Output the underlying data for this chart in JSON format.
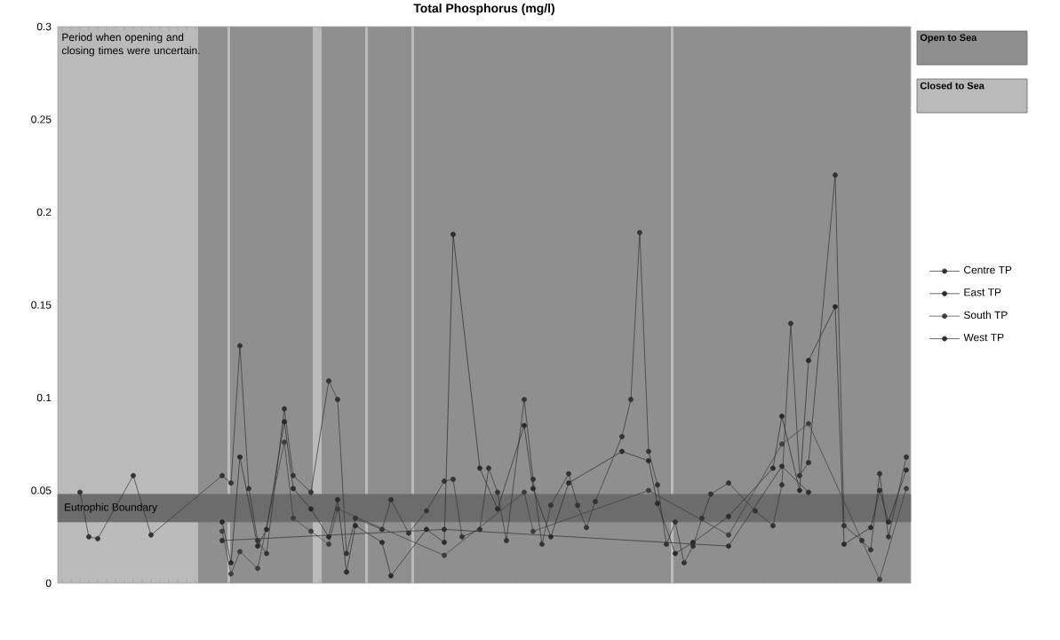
{
  "chart_data": {
    "type": "line",
    "title": "Total Phosphorus (mg/l)",
    "categories": [
      null,
      null,
      null,
      null,
      null,
      null,
      null,
      null,
      null,
      null,
      null,
      null,
      null,
      null,
      null,
      null,
      null,
      null,
      null,
      null,
      null,
      null,
      null,
      null,
      null,
      null,
      null,
      null,
      null,
      null,
      null,
      null,
      null,
      null,
      null,
      null,
      null,
      null,
      null,
      null,
      null,
      null,
      null,
      null,
      null,
      null,
      null,
      null,
      null,
      null,
      null,
      null,
      null,
      null,
      null,
      null,
      null,
      null,
      null,
      null,
      null,
      null,
      null,
      null,
      null,
      null,
      null,
      null,
      null,
      null,
      null,
      null,
      null,
      null,
      null,
      null,
      null,
      null,
      null,
      null,
      null,
      null,
      null,
      null,
      null,
      null,
      null,
      null,
      null,
      null,
      null,
      null,
      null,
      null,
      null,
      null
    ],
    "series": [
      {
        "name": "Centre TP",
        "color": "#333333",
        "values": [
          null,
          null,
          0.049,
          0.025,
          0.024,
          null,
          null,
          null,
          0.058,
          null,
          0.026,
          null,
          null,
          null,
          null,
          null,
          null,
          null,
          0.058,
          0.054,
          0.128,
          0.051,
          0.023,
          0.016,
          null,
          0.094,
          0.058,
          null,
          0.049,
          null,
          0.109,
          0.099,
          0.016,
          0.035,
          null,
          null,
          0.029,
          0.045,
          null,
          0.027,
          null,
          0.039,
          null,
          0.055,
          0.056,
          0.025,
          null,
          0.029,
          0.062,
          0.049,
          0.023,
          null,
          0.099,
          0.056,
          0.021,
          0.042,
          null,
          0.059,
          0.042,
          0.03,
          0.044,
          null,
          null,
          0.079,
          0.099,
          0.189,
          0.071,
          0.053,
          0.021,
          0.033,
          0.011,
          0.02,
          0.035,
          0.048,
          null,
          0.054,
          null,
          null,
          0.039,
          null,
          0.031,
          0.053,
          0.14,
          0.058,
          0.065,
          null,
          null,
          0.22,
          0.031,
          null,
          0.023,
          0.018,
          0.059,
          0.025,
          null,
          0.068
        ]
      },
      {
        "name": "East TP",
        "color": "#2b2b2b",
        "values": [
          null,
          null,
          null,
          null,
          null,
          null,
          null,
          null,
          null,
          null,
          null,
          null,
          null,
          null,
          null,
          null,
          null,
          null,
          0.033,
          0.011,
          0.068,
          null,
          0.02,
          0.029,
          null,
          0.087,
          0.051,
          null,
          0.04,
          null,
          0.025,
          0.045,
          0.006,
          0.031,
          null,
          null,
          0.022,
          0.004,
          null,
          null,
          null,
          0.029,
          null,
          0.022,
          0.188,
          null,
          null,
          0.062,
          null,
          0.04,
          null,
          null,
          0.085,
          0.051,
          null,
          0.025,
          null,
          0.054,
          null,
          null,
          null,
          null,
          null,
          0.071,
          null,
          null,
          0.066,
          0.043,
          null,
          0.016,
          null,
          0.022,
          null,
          null,
          null,
          0.036,
          null,
          null,
          null,
          null,
          0.062,
          0.09,
          null,
          0.05,
          0.12,
          null,
          null,
          0.149,
          0.021,
          null,
          null,
          0.03,
          0.05,
          0.033,
          null,
          0.061
        ]
      },
      {
        "name": "South TP",
        "color": "#3d3d3d",
        "values": [
          null,
          null,
          null,
          null,
          null,
          null,
          null,
          null,
          null,
          null,
          null,
          null,
          null,
          null,
          null,
          null,
          null,
          null,
          0.028,
          0.005,
          0.017,
          null,
          0.008,
          null,
          null,
          0.076,
          0.035,
          null,
          0.028,
          null,
          0.021,
          0.04,
          null,
          null,
          null,
          null,
          null,
          null,
          null,
          null,
          null,
          null,
          null,
          0.015,
          null,
          null,
          null,
          null,
          null,
          null,
          null,
          null,
          0.049,
          0.028,
          null,
          null,
          null,
          null,
          null,
          null,
          null,
          null,
          null,
          null,
          null,
          null,
          0.05,
          null,
          null,
          null,
          null,
          null,
          null,
          null,
          null,
          0.026,
          null,
          null,
          null,
          null,
          null,
          0.075,
          null,
          null,
          0.086,
          null,
          null,
          null,
          null,
          null,
          null,
          null,
          0.002,
          null,
          null,
          0.051
        ]
      },
      {
        "name": "West TP",
        "color": "#303030",
        "values": [
          null,
          null,
          null,
          null,
          null,
          null,
          null,
          null,
          null,
          null,
          null,
          null,
          null,
          null,
          null,
          null,
          null,
          null,
          0.023,
          null,
          null,
          null,
          null,
          null,
          null,
          null,
          null,
          null,
          null,
          null,
          null,
          null,
          null,
          null,
          null,
          null,
          null,
          null,
          null,
          null,
          null,
          null,
          null,
          0.029,
          null,
          null,
          null,
          null,
          null,
          null,
          null,
          null,
          null,
          null,
          null,
          null,
          null,
          null,
          null,
          null,
          null,
          null,
          null,
          null,
          null,
          null,
          null,
          null,
          null,
          null,
          null,
          null,
          null,
          null,
          null,
          0.02,
          null,
          null,
          null,
          null,
          null,
          0.063,
          null,
          null,
          0.049,
          null,
          null,
          null,
          null,
          null,
          null,
          null,
          null,
          null,
          null,
          null
        ]
      }
    ],
    "ylim": [
      0,
      0.3
    ],
    "yticks": [
      0,
      0.05,
      0.1,
      0.15,
      0.2,
      0.25,
      0.3
    ],
    "marker": "circle",
    "legend": "right",
    "bands": [
      {
        "axis": "y",
        "from": 0.033,
        "to": 0.048,
        "color": "#6c6c6c",
        "label": "Eutrophic Boundary"
      }
    ],
    "annotations": [
      "Period when opening and closing times were uncertain.",
      "Open to Sea",
      "Closed to Sea"
    ]
  }
}
